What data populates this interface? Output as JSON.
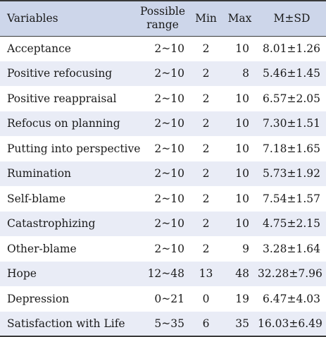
{
  "table": {
    "headers": {
      "variables": "Variables",
      "range_line1": "Possible",
      "range_line2": "range",
      "min": "Min",
      "max": "Max",
      "msd": "M±SD"
    },
    "rows": [
      {
        "variable": "Acceptance",
        "range": "2~10",
        "min": "2",
        "max": "10",
        "msd": "8.01±1.26"
      },
      {
        "variable": "Positive refocusing",
        "range": "2~10",
        "min": "2",
        "max": "8",
        "msd": "5.46±1.45"
      },
      {
        "variable": "Positive reappraisal",
        "range": "2~10",
        "min": "2",
        "max": "10",
        "msd": "6.57±2.05"
      },
      {
        "variable": "Refocus on planning",
        "range": "2~10",
        "min": "2",
        "max": "10",
        "msd": "7.30±1.51"
      },
      {
        "variable": "Putting into perspective",
        "range": "2~10",
        "min": "2",
        "max": "10",
        "msd": "7.18±1.65"
      },
      {
        "variable": "Rumination",
        "range": "2~10",
        "min": "2",
        "max": "10",
        "msd": "5.73±1.92"
      },
      {
        "variable": "Self-blame",
        "range": "2~10",
        "min": "2",
        "max": "10",
        "msd": "7.54±1.57"
      },
      {
        "variable": "Catastrophizing",
        "range": "2~10",
        "min": "2",
        "max": "10",
        "msd": "4.75±2.15"
      },
      {
        "variable": "Other-blame",
        "range": "2~10",
        "min": "2",
        "max": "9",
        "msd": "3.28±1.64"
      },
      {
        "variable": "Hope",
        "range": "12~48",
        "min": "13",
        "max": "48",
        "msd": "32.28±7.96"
      },
      {
        "variable": "Depression",
        "range": "0~21",
        "min": "0",
        "max": "19",
        "msd": "6.47±4.03"
      },
      {
        "variable": "Satisfaction with Life",
        "range": "5~35",
        "min": "6",
        "max": "35",
        "msd": "16.03±6.49"
      }
    ]
  },
  "colors": {
    "header_bg": "#cdd6ea",
    "stripe_bg": "#e9ecf6",
    "rule": "#3a3a3a"
  }
}
